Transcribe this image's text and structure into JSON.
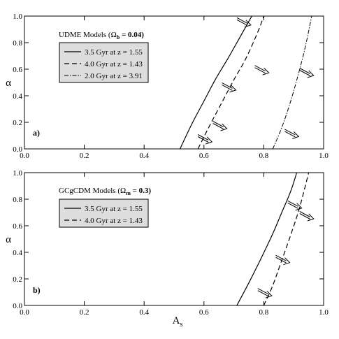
{
  "chart_data": [
    {
      "type": "line",
      "panel_label": "a)",
      "xlabel": "",
      "ylabel": "α",
      "xlim": [
        0.0,
        1.0
      ],
      "ylim": [
        0.0,
        1.0
      ],
      "xticks": [
        "0.0",
        "0.2",
        "0.4",
        "0.6",
        "0.8",
        "1.0"
      ],
      "yticks": [
        "0.0",
        "0.2",
        "0.4",
        "0.6",
        "0.8",
        "1.0"
      ],
      "grid": false,
      "legend_title": {
        "main": "UDME Models (",
        "symbol": "Ω",
        "sub": "b",
        "value": " = 0.04)"
      },
      "legend_position": "upper-left",
      "series": [
        {
          "name": "3.5 Gyr at z = 1.55",
          "style": "solid",
          "x": [
            0.52,
            0.56,
            0.6,
            0.64,
            0.68,
            0.72,
            0.76
          ],
          "y": [
            0.0,
            0.19,
            0.36,
            0.53,
            0.68,
            0.84,
            1.0
          ]
        },
        {
          "name": "4.0 Gyr at z = 1.43",
          "style": "dashed",
          "x": [
            0.58,
            0.62,
            0.66,
            0.7,
            0.74,
            0.78,
            0.8
          ],
          "y": [
            0.0,
            0.18,
            0.35,
            0.52,
            0.68,
            0.88,
            1.0
          ]
        },
        {
          "name": "2.0 Gyr at z = 3.91",
          "style": "dashdot",
          "x": [
            0.83,
            0.86,
            0.89,
            0.92,
            0.94,
            0.96
          ],
          "y": [
            0.0,
            0.16,
            0.36,
            0.6,
            0.78,
            1.0
          ]
        }
      ],
      "arrows": [
        {
          "x": 0.58,
          "y": 0.1
        },
        {
          "x": 0.71,
          "y": 0.98
        },
        {
          "x": 0.63,
          "y": 0.2
        },
        {
          "x": 0.66,
          "y": 0.49
        },
        {
          "x": 0.77,
          "y": 0.62
        },
        {
          "x": 0.87,
          "y": 0.14
        },
        {
          "x": 0.92,
          "y": 0.6
        }
      ]
    },
    {
      "type": "line",
      "panel_label": "b)",
      "xlabel": "A_s",
      "xlabel_main": "A",
      "xlabel_sub": "s",
      "ylabel": "α",
      "xlim": [
        0.0,
        1.0
      ],
      "ylim": [
        0.0,
        1.0
      ],
      "xticks": [
        "0.0",
        "0.2",
        "0.4",
        "0.6",
        "0.8",
        "1.0"
      ],
      "yticks": [
        "0.0",
        "0.2",
        "0.4",
        "0.6",
        "0.8",
        "1.0"
      ],
      "grid": false,
      "legend_title": {
        "main": "GCgCDM Models (",
        "symbol": "Ω",
        "sub": "m",
        "value": " = 0.3)"
      },
      "legend_position": "upper-left",
      "series": [
        {
          "name": "3.5 Gyr at z = 1.55",
          "style": "solid",
          "x": [
            0.71,
            0.75,
            0.79,
            0.83,
            0.86,
            0.89,
            0.91
          ],
          "y": [
            0.0,
            0.17,
            0.35,
            0.54,
            0.7,
            0.86,
            1.0
          ]
        },
        {
          "name": "4.0 Gyr at z = 1.43",
          "style": "dashed",
          "x": [
            0.8,
            0.83,
            0.86,
            0.89,
            0.92,
            0.95
          ],
          "y": [
            0.0,
            0.15,
            0.34,
            0.53,
            0.74,
            1.0
          ]
        }
      ],
      "arrows": [
        {
          "x": 0.78,
          "y": 0.12
        },
        {
          "x": 0.88,
          "y": 0.78
        },
        {
          "x": 0.84,
          "y": 0.37
        },
        {
          "x": 0.92,
          "y": 0.7
        }
      ]
    }
  ]
}
